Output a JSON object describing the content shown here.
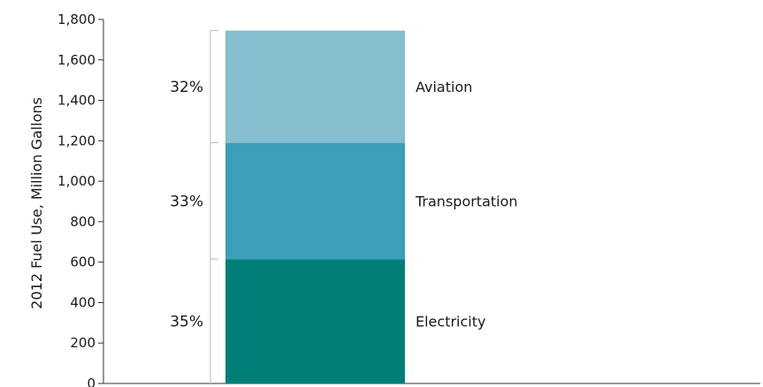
{
  "chart_data": {
    "type": "bar",
    "stacked": true,
    "ylabel": "2012 Fuel Use, Million Gallons",
    "ylim": [
      0,
      1800
    ],
    "yticks": [
      0,
      200,
      400,
      600,
      800,
      1000,
      1200,
      1400,
      1600,
      1800
    ],
    "ytick_labels": [
      "0",
      "200",
      "400",
      "600",
      "800",
      "1,000",
      "1,200",
      "1,400",
      "1,600",
      "1,800"
    ],
    "grid": false,
    "segments": [
      {
        "name": "Electricity",
        "value": 615,
        "percent_label": "35%",
        "color": "#007f78"
      },
      {
        "name": "Transportation",
        "value": 575,
        "percent_label": "33%",
        "color": "#3b9fb9"
      },
      {
        "name": "Aviation",
        "value": 555,
        "percent_label": "32%",
        "color": "#86bdcf"
      }
    ]
  }
}
